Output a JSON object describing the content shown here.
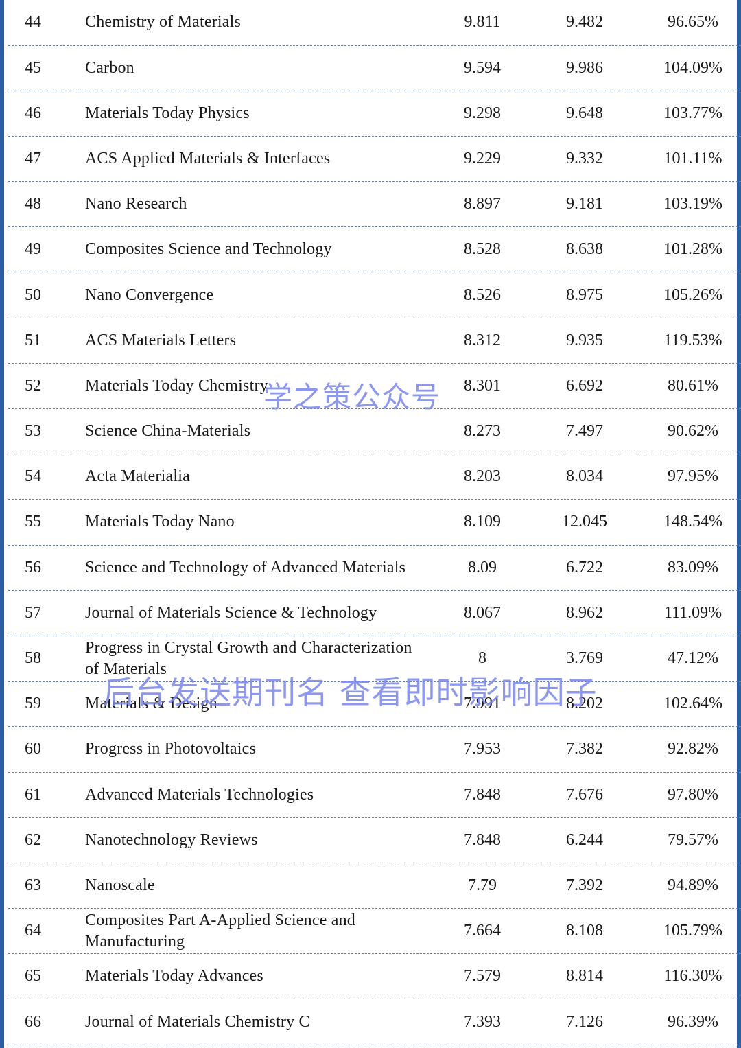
{
  "table": {
    "rows": [
      {
        "rank": "44",
        "name": "Chemistry of Materials",
        "v1": "9.811",
        "v2": "9.482",
        "v3": "96.65%"
      },
      {
        "rank": "45",
        "name": "Carbon",
        "v1": "9.594",
        "v2": "9.986",
        "v3": "104.09%"
      },
      {
        "rank": "46",
        "name": "Materials Today Physics",
        "v1": "9.298",
        "v2": "9.648",
        "v3": "103.77%"
      },
      {
        "rank": "47",
        "name": "ACS Applied Materials & Interfaces",
        "v1": "9.229",
        "v2": "9.332",
        "v3": "101.11%"
      },
      {
        "rank": "48",
        "name": "Nano Research",
        "v1": "8.897",
        "v2": "9.181",
        "v3": "103.19%"
      },
      {
        "rank": "49",
        "name": "Composites Science and Technology",
        "v1": "8.528",
        "v2": "8.638",
        "v3": "101.28%"
      },
      {
        "rank": "50",
        "name": "Nano Convergence",
        "v1": "8.526",
        "v2": "8.975",
        "v3": "105.26%"
      },
      {
        "rank": "51",
        "name": "ACS Materials Letters",
        "v1": "8.312",
        "v2": "9.935",
        "v3": "119.53%"
      },
      {
        "rank": "52",
        "name": "Materials Today Chemistry",
        "v1": "8.301",
        "v2": "6.692",
        "v3": "80.61%"
      },
      {
        "rank": "53",
        "name": "Science China-Materials",
        "v1": "8.273",
        "v2": "7.497",
        "v3": "90.62%"
      },
      {
        "rank": "54",
        "name": "Acta Materialia",
        "v1": "8.203",
        "v2": "8.034",
        "v3": "97.95%"
      },
      {
        "rank": "55",
        "name": "Materials Today Nano",
        "v1": "8.109",
        "v2": "12.045",
        "v3": "148.54%"
      },
      {
        "rank": "56",
        "name": "Science and Technology of Advanced Materials",
        "v1": "8.09",
        "v2": "6.722",
        "v3": "83.09%"
      },
      {
        "rank": "57",
        "name": "Journal of Materials Science & Technology",
        "v1": "8.067",
        "v2": "8.962",
        "v3": "111.09%"
      },
      {
        "rank": "58",
        "name": "Progress in Crystal Growth and Characterization of Materials",
        "v1": "8",
        "v2": "3.769",
        "v3": "47.12%"
      },
      {
        "rank": "59",
        "name": "Materials & Design",
        "v1": "7.991",
        "v2": "8.202",
        "v3": "102.64%"
      },
      {
        "rank": "60",
        "name": "Progress in Photovoltaics",
        "v1": "7.953",
        "v2": "7.382",
        "v3": "92.82%"
      },
      {
        "rank": "61",
        "name": "Advanced Materials Technologies",
        "v1": "7.848",
        "v2": "7.676",
        "v3": "97.80%"
      },
      {
        "rank": "62",
        "name": "Nanotechnology Reviews",
        "v1": "7.848",
        "v2": "6.244",
        "v3": "79.57%"
      },
      {
        "rank": "63",
        "name": "Nanoscale",
        "v1": "7.79",
        "v2": "7.392",
        "v3": "94.89%"
      },
      {
        "rank": "64",
        "name": "Composites Part A-Applied Science and Manufacturing",
        "v1": "7.664",
        "v2": "8.108",
        "v3": "105.79%"
      },
      {
        "rank": "65",
        "name": "Materials Today Advances",
        "v1": "7.579",
        "v2": "8.814",
        "v3": "116.30%"
      },
      {
        "rank": "66",
        "name": "Journal of Materials Chemistry C",
        "v1": "7.393",
        "v2": "7.126",
        "v3": "96.39%"
      }
    ]
  },
  "watermarks": {
    "top": "学之策公众号",
    "bottom": "后台发送期刊名 查看即时影响因子"
  },
  "colors": {
    "frame": "#2d5ea6",
    "divider": "#6a7fa6",
    "watermark": "#7a86e8"
  }
}
